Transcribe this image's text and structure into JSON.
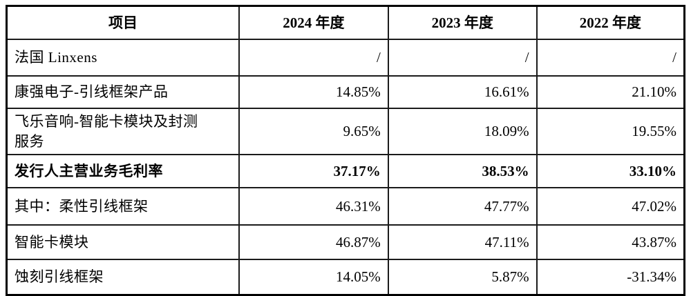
{
  "table": {
    "header": [
      "项目",
      "2024 年度",
      "2023 年度",
      "2022 年度"
    ],
    "rows": [
      {
        "label": "法国 Linxens",
        "values": [
          "/",
          "/",
          "/"
        ]
      },
      {
        "label": "康强电子-引线框架产品",
        "values": [
          "14.85%",
          "16.61%",
          "21.10%"
        ]
      },
      {
        "label": "飞乐音响-智能卡模块及封测服务",
        "values": [
          "9.65%",
          "18.09%",
          "19.55%"
        ]
      },
      {
        "label": "发行人主营业务毛利率",
        "values": [
          "37.17%",
          "38.53%",
          "33.10%"
        ]
      },
      {
        "label": "其中：柔性引线框架",
        "values": [
          "46.31%",
          "47.77%",
          "47.02%"
        ]
      },
      {
        "label": "智能卡模块",
        "values": [
          "46.87%",
          "47.11%",
          "43.87%"
        ]
      },
      {
        "label": "蚀刻引线框架",
        "values": [
          "14.05%",
          "5.87%",
          "-31.34%"
        ]
      }
    ]
  }
}
